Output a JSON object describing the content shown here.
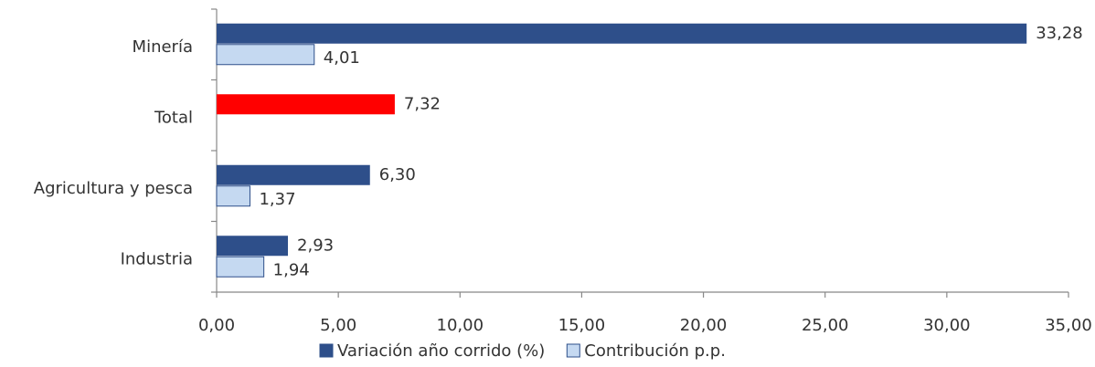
{
  "chart_data": {
    "type": "hbar",
    "categories": [
      "Minería",
      "Total",
      "Agricultura y pesca",
      "Industria"
    ],
    "series": [
      {
        "name": "Variación año corrido (%)",
        "color": "#2e4f8a",
        "colors": [
          "#2e4f8a",
          "#ff0000",
          "#2e4f8a",
          "#2e4f8a"
        ],
        "values": [
          33.28,
          7.32,
          6.3,
          2.93
        ],
        "value_labels": [
          "33,28",
          "7,32",
          "6,30",
          "2,93"
        ]
      },
      {
        "name": "Contribución p.p.",
        "color": "#c5d9f1",
        "values": [
          4.01,
          null,
          1.37,
          1.94
        ],
        "value_labels": [
          "4,01",
          null,
          "1,37",
          "1,94"
        ]
      }
    ],
    "xlim": [
      0,
      35
    ],
    "xticks": [
      {
        "value": 0,
        "label": "0,00"
      },
      {
        "value": 5,
        "label": "5,00"
      },
      {
        "value": 10,
        "label": "10,00"
      },
      {
        "value": 15,
        "label": "15,00"
      },
      {
        "value": 20,
        "label": "20,00"
      },
      {
        "value": 25,
        "label": "25,00"
      },
      {
        "value": 30,
        "label": "30,00"
      },
      {
        "value": 35,
        "label": "35,00"
      }
    ],
    "legend": "bottom"
  }
}
